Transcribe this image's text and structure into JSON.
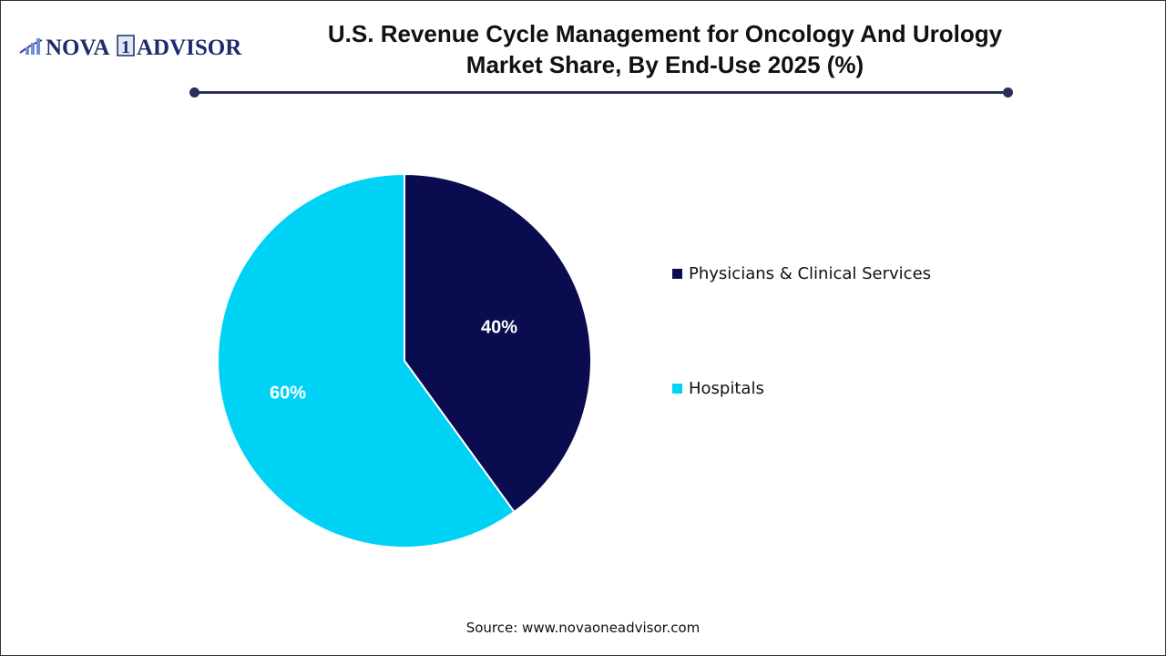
{
  "brand": {
    "logo_text": "NOVA 1 ADVISOR"
  },
  "chart_data": {
    "type": "pie",
    "title": "U.S. Revenue Cycle Management for Oncology And Urology Market Share, By End-Use 2025 (%)",
    "title_line1": "U.S. Revenue Cycle Management for Oncology And Urology",
    "title_line2": "Market Share, By End-Use 2025 (%)",
    "slices": [
      {
        "label": "Physicians & Clinical Services",
        "value": 40,
        "data_label": "40%",
        "color": "#0b0b4f"
      },
      {
        "label": "Hospitals",
        "value": 60,
        "data_label": "60%",
        "color": "#00d2f5"
      }
    ],
    "start": "top",
    "direction": "clockwise",
    "legend_position": "right"
  },
  "source": "Source: www.novaoneadvisor.com"
}
